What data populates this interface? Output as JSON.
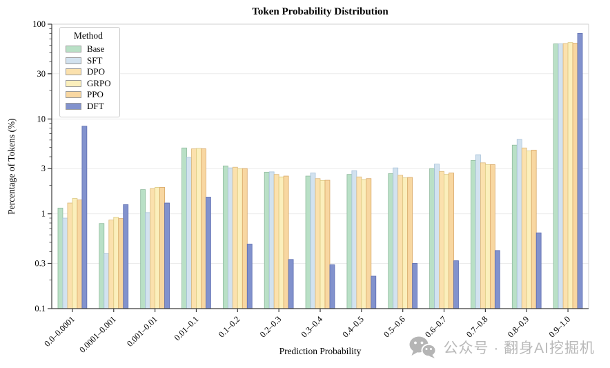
{
  "figure": {
    "watermark_text": "公众号 · 翻身AI挖掘机"
  },
  "chart_data": {
    "type": "bar",
    "title": "Token Probability Distribution",
    "xlabel": "Prediction Probability",
    "ylabel": "Percentage of Tokens (%)",
    "yscale": "log",
    "ylim": [
      0.1,
      100
    ],
    "grid": true,
    "legend_title": "Method",
    "legend_position": "upper-left",
    "yticks": [
      {
        "v": 100,
        "label": "100"
      },
      {
        "v": 30,
        "label": "30"
      },
      {
        "v": 10,
        "label": "10"
      },
      {
        "v": 3,
        "label": "3"
      },
      {
        "v": 1,
        "label": "1"
      },
      {
        "v": 0.3,
        "label": "0.3"
      },
      {
        "v": 0.1,
        "label": "0.1"
      }
    ],
    "categories": [
      "0.0–0.0001",
      "0.0001–0.001",
      "0.001–0.01",
      "0.01–0.1",
      "0.1–0.2",
      "0.2–0.3",
      "0.3–0.4",
      "0.4–0.5",
      "0.5–0.6",
      "0.6–0.7",
      "0.7–0.8",
      "0.8–0.9",
      "0.9–1.0"
    ],
    "series": [
      {
        "name": "Base",
        "color": "#b9e0c6",
        "edge": "#8fba9d",
        "values": [
          1.15,
          0.79,
          1.8,
          4.95,
          3.2,
          2.75,
          2.5,
          2.6,
          2.65,
          3.0,
          3.65,
          5.3,
          62
        ]
      },
      {
        "name": "SFT",
        "color": "#d2e2ef",
        "edge": "#a6c1d9",
        "values": [
          0.9,
          0.38,
          1.03,
          3.95,
          3.05,
          2.77,
          2.7,
          2.85,
          3.05,
          3.35,
          4.2,
          6.1,
          62
        ]
      },
      {
        "name": "DPO",
        "color": "#fbe1ad",
        "edge": "#dcb87d",
        "values": [
          1.3,
          0.86,
          1.85,
          4.85,
          3.1,
          2.6,
          2.35,
          2.45,
          2.55,
          2.8,
          3.45,
          4.95,
          62.5
        ]
      },
      {
        "name": "GRPO",
        "color": "#fbefbc",
        "edge": "#dcc983",
        "values": [
          1.45,
          0.92,
          1.9,
          4.9,
          3.0,
          2.45,
          2.25,
          2.3,
          2.4,
          2.6,
          3.3,
          4.6,
          64
        ]
      },
      {
        "name": "PPO",
        "color": "#f8d7a1",
        "edge": "#d8a868",
        "values": [
          1.4,
          0.89,
          1.9,
          4.85,
          3.0,
          2.5,
          2.26,
          2.35,
          2.42,
          2.7,
          3.3,
          4.7,
          63
        ]
      },
      {
        "name": "DFT",
        "color": "#8292cd",
        "edge": "#5c6cb0",
        "values": [
          8.4,
          1.25,
          1.3,
          1.5,
          0.48,
          0.33,
          0.29,
          0.22,
          0.3,
          0.32,
          0.41,
          0.63,
          80
        ]
      }
    ]
  }
}
